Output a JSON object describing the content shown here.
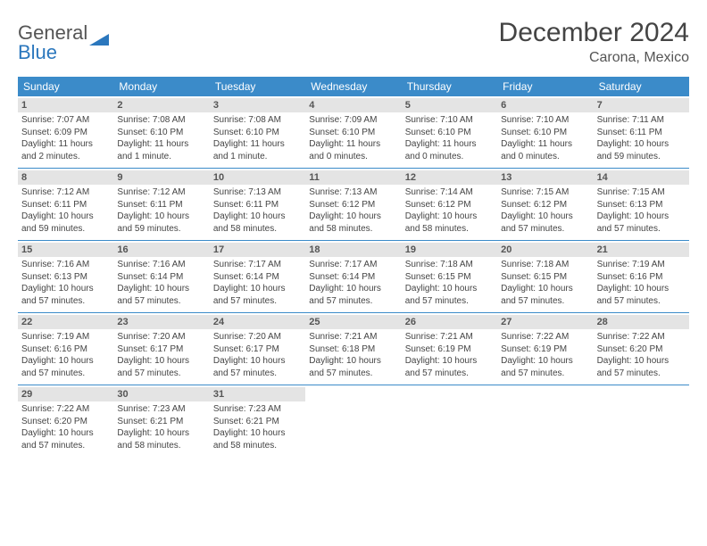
{
  "logo": {
    "line1": "General",
    "line2": "Blue"
  },
  "title": "December 2024",
  "location": "Carona, Mexico",
  "colors": {
    "header_bg": "#3b8bc9",
    "header_text": "#ffffff",
    "daynum_bg": "#e4e4e4",
    "daynum_text": "#555555",
    "body_text": "#444444",
    "rule": "#3b8bc9",
    "logo_gray": "#555555",
    "logo_blue": "#2b77bd"
  },
  "weekdays": [
    "Sunday",
    "Monday",
    "Tuesday",
    "Wednesday",
    "Thursday",
    "Friday",
    "Saturday"
  ],
  "weeks": [
    [
      {
        "n": "1",
        "sr": "Sunrise: 7:07 AM",
        "ss": "Sunset: 6:09 PM",
        "d1": "Daylight: 11 hours",
        "d2": "and 2 minutes."
      },
      {
        "n": "2",
        "sr": "Sunrise: 7:08 AM",
        "ss": "Sunset: 6:10 PM",
        "d1": "Daylight: 11 hours",
        "d2": "and 1 minute."
      },
      {
        "n": "3",
        "sr": "Sunrise: 7:08 AM",
        "ss": "Sunset: 6:10 PM",
        "d1": "Daylight: 11 hours",
        "d2": "and 1 minute."
      },
      {
        "n": "4",
        "sr": "Sunrise: 7:09 AM",
        "ss": "Sunset: 6:10 PM",
        "d1": "Daylight: 11 hours",
        "d2": "and 0 minutes."
      },
      {
        "n": "5",
        "sr": "Sunrise: 7:10 AM",
        "ss": "Sunset: 6:10 PM",
        "d1": "Daylight: 11 hours",
        "d2": "and 0 minutes."
      },
      {
        "n": "6",
        "sr": "Sunrise: 7:10 AM",
        "ss": "Sunset: 6:10 PM",
        "d1": "Daylight: 11 hours",
        "d2": "and 0 minutes."
      },
      {
        "n": "7",
        "sr": "Sunrise: 7:11 AM",
        "ss": "Sunset: 6:11 PM",
        "d1": "Daylight: 10 hours",
        "d2": "and 59 minutes."
      }
    ],
    [
      {
        "n": "8",
        "sr": "Sunrise: 7:12 AM",
        "ss": "Sunset: 6:11 PM",
        "d1": "Daylight: 10 hours",
        "d2": "and 59 minutes."
      },
      {
        "n": "9",
        "sr": "Sunrise: 7:12 AM",
        "ss": "Sunset: 6:11 PM",
        "d1": "Daylight: 10 hours",
        "d2": "and 59 minutes."
      },
      {
        "n": "10",
        "sr": "Sunrise: 7:13 AM",
        "ss": "Sunset: 6:11 PM",
        "d1": "Daylight: 10 hours",
        "d2": "and 58 minutes."
      },
      {
        "n": "11",
        "sr": "Sunrise: 7:13 AM",
        "ss": "Sunset: 6:12 PM",
        "d1": "Daylight: 10 hours",
        "d2": "and 58 minutes."
      },
      {
        "n": "12",
        "sr": "Sunrise: 7:14 AM",
        "ss": "Sunset: 6:12 PM",
        "d1": "Daylight: 10 hours",
        "d2": "and 58 minutes."
      },
      {
        "n": "13",
        "sr": "Sunrise: 7:15 AM",
        "ss": "Sunset: 6:12 PM",
        "d1": "Daylight: 10 hours",
        "d2": "and 57 minutes."
      },
      {
        "n": "14",
        "sr": "Sunrise: 7:15 AM",
        "ss": "Sunset: 6:13 PM",
        "d1": "Daylight: 10 hours",
        "d2": "and 57 minutes."
      }
    ],
    [
      {
        "n": "15",
        "sr": "Sunrise: 7:16 AM",
        "ss": "Sunset: 6:13 PM",
        "d1": "Daylight: 10 hours",
        "d2": "and 57 minutes."
      },
      {
        "n": "16",
        "sr": "Sunrise: 7:16 AM",
        "ss": "Sunset: 6:14 PM",
        "d1": "Daylight: 10 hours",
        "d2": "and 57 minutes."
      },
      {
        "n": "17",
        "sr": "Sunrise: 7:17 AM",
        "ss": "Sunset: 6:14 PM",
        "d1": "Daylight: 10 hours",
        "d2": "and 57 minutes."
      },
      {
        "n": "18",
        "sr": "Sunrise: 7:17 AM",
        "ss": "Sunset: 6:14 PM",
        "d1": "Daylight: 10 hours",
        "d2": "and 57 minutes."
      },
      {
        "n": "19",
        "sr": "Sunrise: 7:18 AM",
        "ss": "Sunset: 6:15 PM",
        "d1": "Daylight: 10 hours",
        "d2": "and 57 minutes."
      },
      {
        "n": "20",
        "sr": "Sunrise: 7:18 AM",
        "ss": "Sunset: 6:15 PM",
        "d1": "Daylight: 10 hours",
        "d2": "and 57 minutes."
      },
      {
        "n": "21",
        "sr": "Sunrise: 7:19 AM",
        "ss": "Sunset: 6:16 PM",
        "d1": "Daylight: 10 hours",
        "d2": "and 57 minutes."
      }
    ],
    [
      {
        "n": "22",
        "sr": "Sunrise: 7:19 AM",
        "ss": "Sunset: 6:16 PM",
        "d1": "Daylight: 10 hours",
        "d2": "and 57 minutes."
      },
      {
        "n": "23",
        "sr": "Sunrise: 7:20 AM",
        "ss": "Sunset: 6:17 PM",
        "d1": "Daylight: 10 hours",
        "d2": "and 57 minutes."
      },
      {
        "n": "24",
        "sr": "Sunrise: 7:20 AM",
        "ss": "Sunset: 6:17 PM",
        "d1": "Daylight: 10 hours",
        "d2": "and 57 minutes."
      },
      {
        "n": "25",
        "sr": "Sunrise: 7:21 AM",
        "ss": "Sunset: 6:18 PM",
        "d1": "Daylight: 10 hours",
        "d2": "and 57 minutes."
      },
      {
        "n": "26",
        "sr": "Sunrise: 7:21 AM",
        "ss": "Sunset: 6:19 PM",
        "d1": "Daylight: 10 hours",
        "d2": "and 57 minutes."
      },
      {
        "n": "27",
        "sr": "Sunrise: 7:22 AM",
        "ss": "Sunset: 6:19 PM",
        "d1": "Daylight: 10 hours",
        "d2": "and 57 minutes."
      },
      {
        "n": "28",
        "sr": "Sunrise: 7:22 AM",
        "ss": "Sunset: 6:20 PM",
        "d1": "Daylight: 10 hours",
        "d2": "and 57 minutes."
      }
    ],
    [
      {
        "n": "29",
        "sr": "Sunrise: 7:22 AM",
        "ss": "Sunset: 6:20 PM",
        "d1": "Daylight: 10 hours",
        "d2": "and 57 minutes."
      },
      {
        "n": "30",
        "sr": "Sunrise: 7:23 AM",
        "ss": "Sunset: 6:21 PM",
        "d1": "Daylight: 10 hours",
        "d2": "and 58 minutes."
      },
      {
        "n": "31",
        "sr": "Sunrise: 7:23 AM",
        "ss": "Sunset: 6:21 PM",
        "d1": "Daylight: 10 hours",
        "d2": "and 58 minutes."
      },
      null,
      null,
      null,
      null
    ]
  ]
}
